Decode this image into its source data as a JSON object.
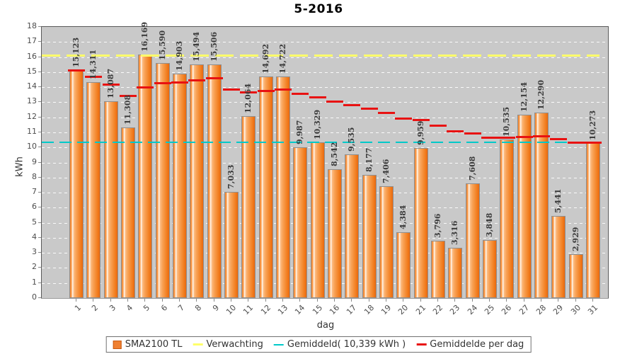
{
  "title": "5-2016",
  "chart_data": {
    "type": "bar",
    "title": "5-2016",
    "xlabel": "dag",
    "ylabel": "kWh",
    "ylim": [
      0,
      18
    ],
    "y_ticks": [
      0,
      1,
      2,
      3,
      4,
      5,
      6,
      7,
      8,
      9,
      10,
      11,
      12,
      13,
      14,
      15,
      16,
      17,
      18
    ],
    "grid": "horizontal-dashed-white",
    "plot_background": "#c9c9c9",
    "categories": [
      "1",
      "2",
      "3",
      "4",
      "5",
      "6",
      "7",
      "8",
      "9",
      "10",
      "11",
      "12",
      "13",
      "14",
      "15",
      "16",
      "17",
      "18",
      "19",
      "20",
      "21",
      "22",
      "23",
      "24",
      "25",
      "26",
      "27",
      "28",
      "29",
      "30",
      "31"
    ],
    "series": [
      {
        "name": "SMA2100 TL",
        "color": "#f08030",
        "values": [
          15.123,
          14.311,
          13.087,
          11.308,
          16.169,
          15.59,
          14.903,
          15.494,
          15.506,
          7.033,
          12.064,
          14.692,
          14.722,
          9.987,
          10.329,
          8.542,
          9.535,
          8.177,
          7.406,
          4.384,
          9.959,
          3.796,
          3.316,
          7.608,
          3.848,
          10.535,
          12.154,
          12.29,
          5.441,
          2.929,
          10.273
        ],
        "value_labels": [
          "15,123",
          "14,311",
          "13,087",
          "11,308",
          "16,169",
          "15,590",
          "14,903",
          "15,494",
          "15,506",
          "7,033",
          "12,064",
          "14,692",
          "14,722",
          "9,987",
          "10,329",
          "8,542",
          "9,535",
          "8,177",
          "7,406",
          "4,384",
          "9,959",
          "3,796",
          "3,316",
          "7,608",
          "3,848",
          "10,535",
          "12,154",
          "12,290",
          "5,441",
          "2,929",
          "10,273"
        ]
      }
    ],
    "lines": {
      "verwachting": {
        "label": "Verwachting",
        "value": 16.1,
        "color": "#ffff6a",
        "style": "dashed"
      },
      "gemiddeld": {
        "label": "Gemiddeld( 10,339 kWh )",
        "value": 10.339,
        "color": "#00c9c9",
        "style": "dashed"
      },
      "gemiddelde_per_dag": {
        "label": "Gemiddelde per dag",
        "color": "#e81212",
        "style": "per-day-segments",
        "values": [
          15.123,
          14.717,
          14.174,
          13.457,
          14.0,
          14.265,
          14.356,
          14.498,
          14.61,
          13.852,
          13.69,
          13.773,
          13.846,
          13.571,
          13.355,
          13.054,
          12.847,
          12.587,
          12.315,
          11.918,
          11.825,
          11.46,
          11.106,
          10.96,
          10.676,
          10.67,
          10.725,
          10.781,
          10.597,
          10.341,
          10.339
        ]
      }
    },
    "legend": [
      {
        "swatch": "bar",
        "label": "SMA2100 TL",
        "color": "#f08030"
      },
      {
        "swatch": "line",
        "label": "Verwachting",
        "color": "#ffff6a"
      },
      {
        "swatch": "line",
        "label": "Gemiddeld( 10,339 kWh )",
        "color": "#00c9c9"
      },
      {
        "swatch": "line",
        "label": "Gemiddelde per dag",
        "color": "#e81212"
      }
    ],
    "legend_position": "bottom-center"
  }
}
